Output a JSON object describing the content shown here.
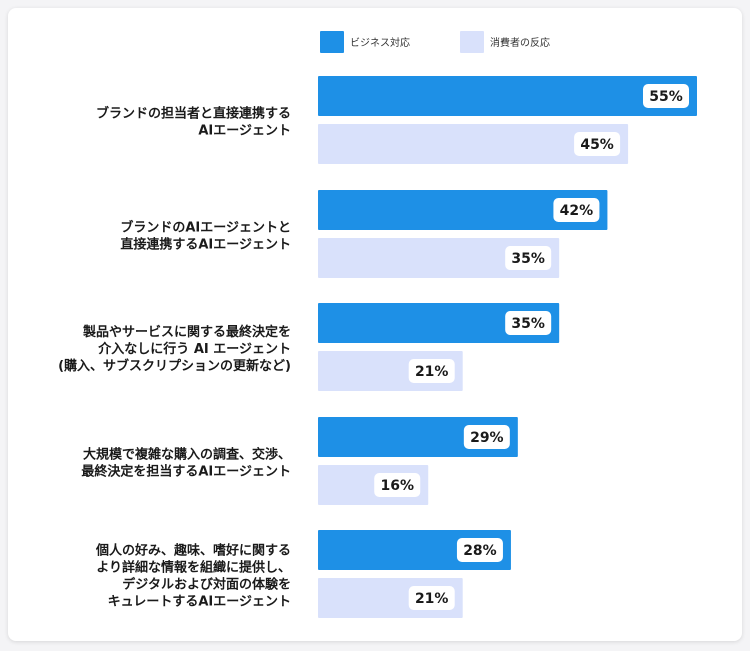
{
  "chart_data": {
    "type": "bar",
    "orientation": "horizontal",
    "categories": [
      [
        "ブランドの担当者と直接連携する",
        "AIエージェント"
      ],
      [
        "ブランドのAIエージェントと",
        "直接連携するAIエージェント"
      ],
      [
        "製品やサービスに関する最終決定を",
        "介入なしに行う AI エージェント",
        "(購入、サブスクリプションの更新など)"
      ],
      [
        "大規模で複雑な購入の調査、交渉、",
        "最終決定を担当するAIエージェント"
      ],
      [
        "個人の好み、趣味、嗜好に関する",
        "より詳細な情報を組織に提供し、",
        "デジタルおよび対面の体験を",
        "キュレートするAIエージェント"
      ]
    ],
    "series": [
      {
        "name": "ビジネス対応",
        "color": "#1e90e6",
        "values": [
          55,
          42,
          35,
          29,
          28
        ],
        "labels": [
          "55%",
          "42%",
          "35%",
          "29%",
          "28%"
        ]
      },
      {
        "name": "消費者の反応",
        "color": "#d9e1fb",
        "values": [
          45,
          35,
          21,
          16,
          21
        ],
        "labels": [
          "45%",
          "35%",
          "21%",
          "16%",
          "21%"
        ]
      }
    ],
    "legend_position": "top",
    "xlim": [
      0,
      55
    ],
    "grid": false
  }
}
